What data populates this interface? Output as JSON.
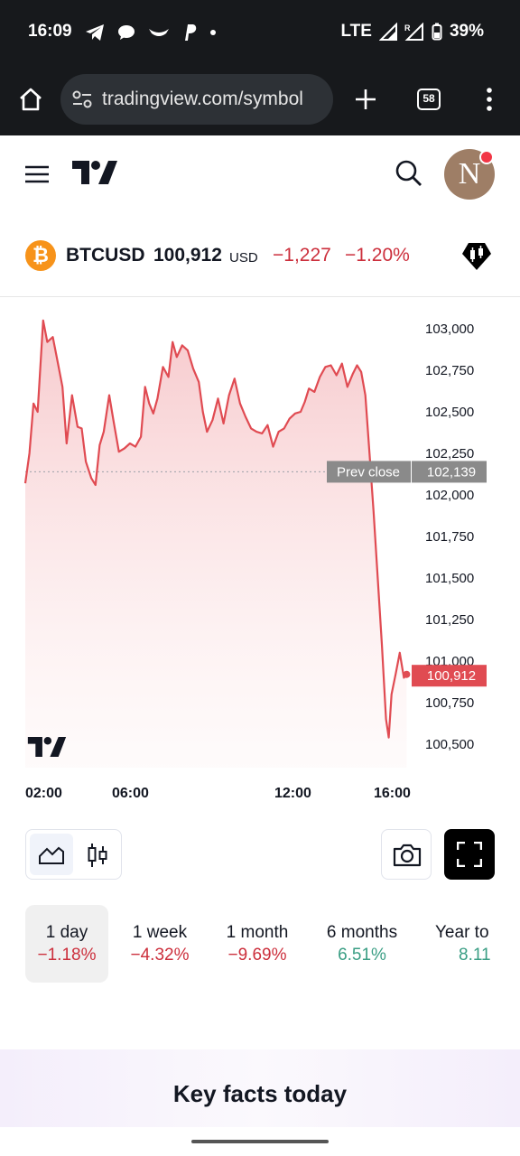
{
  "status": {
    "time": "16:09",
    "network": "LTE",
    "battery": "39%"
  },
  "browser": {
    "url": "tradingview.com/symbol",
    "tab_count": "58"
  },
  "header": {
    "avatar_letter": "N"
  },
  "symbol": {
    "ticker": "BTCUSD",
    "price": "100,912",
    "currency": "USD",
    "change": "−1,227",
    "change_pct": "−1.20%"
  },
  "chart_data": {
    "type": "area",
    "x_ticks": [
      "02:00",
      "06:00",
      "12:00",
      "16:00"
    ],
    "y_ticks": [
      "103,000",
      "102,750",
      "102,500",
      "102,250",
      "102,000",
      "101,750",
      "101,500",
      "101,250",
      "101,000",
      "100,750",
      "100,500"
    ],
    "ylim": [
      100500,
      103000
    ],
    "prev_close": {
      "label": "Prev close",
      "value": "102,139",
      "number": 102139
    },
    "last": {
      "value": "100,912",
      "number": 100912
    },
    "line_color": "#e04b52",
    "series": [
      {
        "x": 0.0,
        "y": 102070
      },
      {
        "x": 0.15,
        "y": 102250
      },
      {
        "x": 0.3,
        "y": 102550
      },
      {
        "x": 0.45,
        "y": 102500
      },
      {
        "x": 0.65,
        "y": 103050
      },
      {
        "x": 0.8,
        "y": 102920
      },
      {
        "x": 1.0,
        "y": 102950
      },
      {
        "x": 1.2,
        "y": 102780
      },
      {
        "x": 1.35,
        "y": 102650
      },
      {
        "x": 1.5,
        "y": 102310
      },
      {
        "x": 1.7,
        "y": 102600
      },
      {
        "x": 1.9,
        "y": 102410
      },
      {
        "x": 2.05,
        "y": 102400
      },
      {
        "x": 2.2,
        "y": 102200
      },
      {
        "x": 2.4,
        "y": 102100
      },
      {
        "x": 2.55,
        "y": 102060
      },
      {
        "x": 2.7,
        "y": 102300
      },
      {
        "x": 2.85,
        "y": 102380
      },
      {
        "x": 3.05,
        "y": 102600
      },
      {
        "x": 3.2,
        "y": 102450
      },
      {
        "x": 3.4,
        "y": 102260
      },
      {
        "x": 3.6,
        "y": 102280
      },
      {
        "x": 3.8,
        "y": 102310
      },
      {
        "x": 4.0,
        "y": 102290
      },
      {
        "x": 4.2,
        "y": 102350
      },
      {
        "x": 4.35,
        "y": 102650
      },
      {
        "x": 4.5,
        "y": 102550
      },
      {
        "x": 4.65,
        "y": 102490
      },
      {
        "x": 4.8,
        "y": 102580
      },
      {
        "x": 5.0,
        "y": 102770
      },
      {
        "x": 5.2,
        "y": 102710
      },
      {
        "x": 5.35,
        "y": 102920
      },
      {
        "x": 5.5,
        "y": 102830
      },
      {
        "x": 5.7,
        "y": 102900
      },
      {
        "x": 5.9,
        "y": 102870
      },
      {
        "x": 6.1,
        "y": 102760
      },
      {
        "x": 6.3,
        "y": 102680
      },
      {
        "x": 6.45,
        "y": 102500
      },
      {
        "x": 6.6,
        "y": 102380
      },
      {
        "x": 6.8,
        "y": 102450
      },
      {
        "x": 7.0,
        "y": 102580
      },
      {
        "x": 7.2,
        "y": 102430
      },
      {
        "x": 7.4,
        "y": 102600
      },
      {
        "x": 7.6,
        "y": 102700
      },
      {
        "x": 7.8,
        "y": 102550
      },
      {
        "x": 8.0,
        "y": 102470
      },
      {
        "x": 8.2,
        "y": 102400
      },
      {
        "x": 8.4,
        "y": 102380
      },
      {
        "x": 8.6,
        "y": 102370
      },
      {
        "x": 8.8,
        "y": 102420
      },
      {
        "x": 9.0,
        "y": 102290
      },
      {
        "x": 9.2,
        "y": 102380
      },
      {
        "x": 9.4,
        "y": 102400
      },
      {
        "x": 9.6,
        "y": 102460
      },
      {
        "x": 9.8,
        "y": 102490
      },
      {
        "x": 10.0,
        "y": 102500
      },
      {
        "x": 10.15,
        "y": 102560
      },
      {
        "x": 10.3,
        "y": 102640
      },
      {
        "x": 10.5,
        "y": 102620
      },
      {
        "x": 10.7,
        "y": 102710
      },
      {
        "x": 10.9,
        "y": 102770
      },
      {
        "x": 11.1,
        "y": 102780
      },
      {
        "x": 11.3,
        "y": 102720
      },
      {
        "x": 11.5,
        "y": 102790
      },
      {
        "x": 11.7,
        "y": 102650
      },
      {
        "x": 11.9,
        "y": 102730
      },
      {
        "x": 12.05,
        "y": 102780
      },
      {
        "x": 12.2,
        "y": 102740
      },
      {
        "x": 12.35,
        "y": 102600
      },
      {
        "x": 12.5,
        "y": 102250
      },
      {
        "x": 12.65,
        "y": 101900
      },
      {
        "x": 12.8,
        "y": 101500
      },
      {
        "x": 12.95,
        "y": 101100
      },
      {
        "x": 13.1,
        "y": 100650
      },
      {
        "x": 13.2,
        "y": 100540
      },
      {
        "x": 13.3,
        "y": 100800
      },
      {
        "x": 13.45,
        "y": 100920
      },
      {
        "x": 13.6,
        "y": 101050
      },
      {
        "x": 13.75,
        "y": 100900
      },
      {
        "x": 13.85,
        "y": 100920
      }
    ]
  },
  "controls": {
    "line_icon": "line-chart-icon",
    "candle_icon": "candlestick-icon",
    "camera_icon": "camera-icon",
    "fullscreen_icon": "fullscreen-icon"
  },
  "periods": [
    {
      "label": "1 day",
      "value": "−1.18%",
      "trend": "neg"
    },
    {
      "label": "1 week",
      "value": "−4.32%",
      "trend": "neg"
    },
    {
      "label": "1 month",
      "value": "−9.69%",
      "trend": "neg"
    },
    {
      "label": "6 months",
      "value": "6.51%",
      "trend": "pos"
    },
    {
      "label": "Year to",
      "value": "8.11",
      "trend": "pos"
    }
  ],
  "key_facts": {
    "title": "Key facts today"
  },
  "colors": {
    "accent_red": "#cc2f3c",
    "accent_green": "#3a9e84",
    "bitcoin_orange": "#f7931a"
  }
}
